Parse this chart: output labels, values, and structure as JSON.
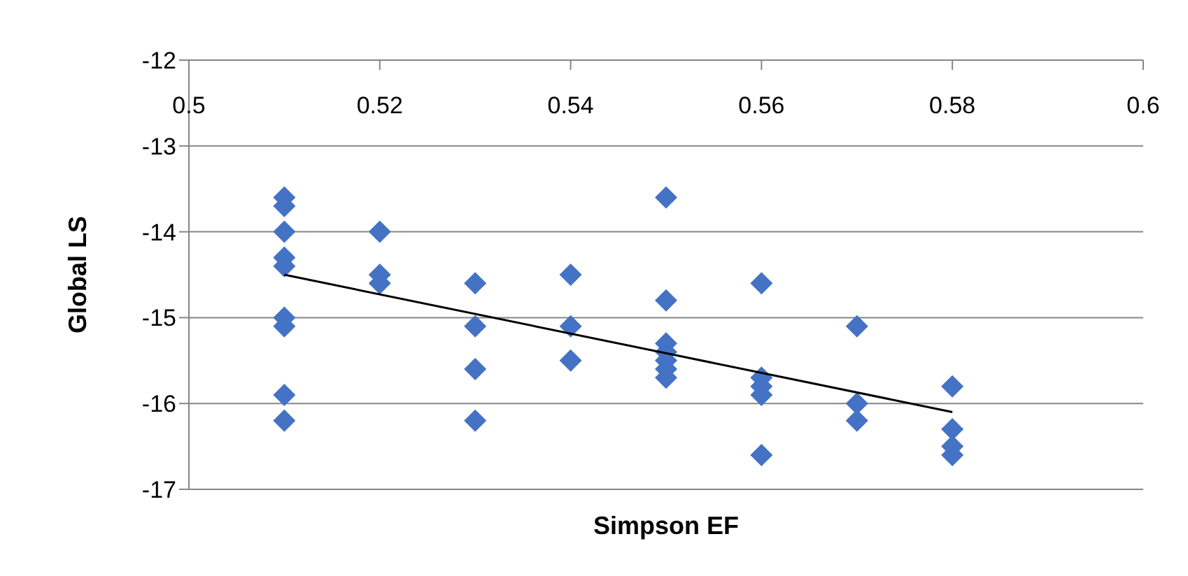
{
  "chart_data": {
    "type": "scatter",
    "xlabel": "Simpson EF",
    "ylabel": "Global LS",
    "xlim": [
      0.5,
      0.6
    ],
    "xticks": [
      0.5,
      0.52,
      0.54,
      0.56,
      0.58,
      0.6
    ],
    "ylim": [
      -17,
      -12
    ],
    "yticks": [
      -17,
      -16,
      -15,
      -14,
      -13,
      -12
    ],
    "grid": "y",
    "series": [
      {
        "marker": "diamond",
        "color": "#4472c4",
        "x": [
          0.51,
          0.51,
          0.51,
          0.51,
          0.51,
          0.51,
          0.51,
          0.51,
          0.51,
          0.52,
          0.52,
          0.52,
          0.53,
          0.53,
          0.53,
          0.53,
          0.54,
          0.54,
          0.54,
          0.55,
          0.55,
          0.55,
          0.55,
          0.55,
          0.55,
          0.55,
          0.56,
          0.56,
          0.56,
          0.56,
          0.56,
          0.57,
          0.57,
          0.57,
          0.58,
          0.58,
          0.58,
          0.58
        ],
        "values": [
          -13.6,
          -13.7,
          -14.0,
          -14.3,
          -14.4,
          -15.0,
          -15.1,
          -15.9,
          -16.2,
          -14.0,
          -14.5,
          -14.6,
          -14.6,
          -15.1,
          -15.6,
          -16.2,
          -14.5,
          -15.1,
          -15.5,
          -13.6,
          -14.8,
          -15.3,
          -15.4,
          -15.5,
          -15.6,
          -15.7,
          -14.6,
          -15.7,
          -15.8,
          -15.9,
          -16.6,
          -15.1,
          -16.0,
          -16.2,
          -15.8,
          -16.3,
          -16.5,
          -16.6
        ]
      },
      {
        "type": "line",
        "marker": "none",
        "color": "#000000",
        "x": [
          0.51,
          0.58
        ],
        "values": [
          -14.5,
          -16.1
        ]
      }
    ]
  }
}
